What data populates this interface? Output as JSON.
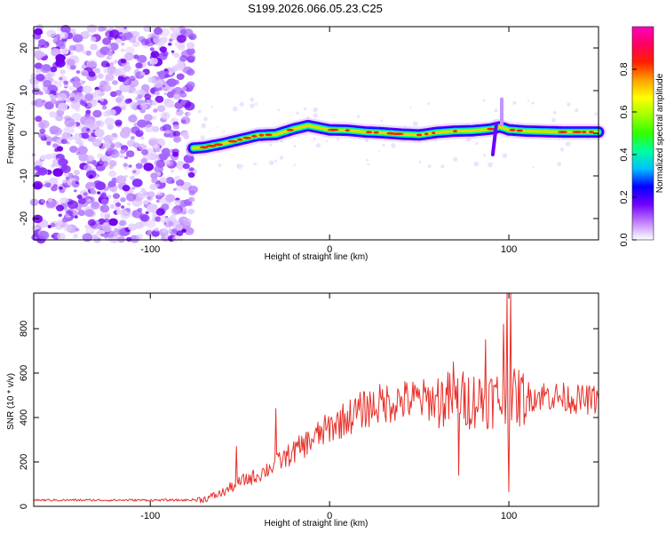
{
  "title": "S199.2026.066.05.23.C25",
  "chart_data": [
    {
      "type": "heatmap",
      "name": "spectrogram",
      "xlabel": "Height of straight line (km)",
      "ylabel": "Frequency (Hz)",
      "xlim": [
        -165,
        150
      ],
      "ylim": [
        -25,
        25
      ],
      "xticks": [
        -100,
        0,
        100
      ],
      "yticks": [
        -20,
        -10,
        0,
        10,
        20
      ],
      "noise_region_x": [
        -165,
        -76
      ],
      "ridge": {
        "x": [
          -76,
          -70,
          -60,
          -50,
          -40,
          -30,
          -20,
          -12,
          0,
          10,
          20,
          30,
          40,
          50,
          60,
          70,
          80,
          90,
          95,
          100,
          110,
          120,
          130,
          140,
          150
        ],
        "y": [
          -3.5,
          -3.3,
          -2.5,
          -1.5,
          -0.5,
          -0.3,
          1.0,
          1.8,
          0.8,
          0.7,
          0.3,
          0.1,
          -0.2,
          -0.4,
          0.2,
          0.5,
          0.6,
          1.0,
          1.5,
          0.8,
          0.5,
          0.4,
          0.3,
          0.3,
          0.3
        ]
      },
      "colorbar": {
        "label": "Normalized spectral amplitude",
        "range": [
          0,
          1
        ],
        "ticks": [
          0.0,
          0.2,
          0.4,
          0.6,
          0.8
        ],
        "tick_labels": [
          "0.0",
          "0.2",
          "0.4",
          "0.6",
          "0.8"
        ],
        "colors": [
          "#ffffff",
          "#c080ff",
          "#7000ff",
          "#0000ff",
          "#00c0ff",
          "#00ffa0",
          "#30ff00",
          "#a0ff00",
          "#ffff00",
          "#ffa000",
          "#ff2000",
          "#ff0060",
          "#ff00c0"
        ]
      }
    },
    {
      "type": "line",
      "name": "snr",
      "xlabel": "Height of straight line (km)",
      "ylabel": "SNR (10 * v/v)",
      "xlim": [
        -165,
        150
      ],
      "ylim": [
        0,
        960
      ],
      "xticks": [
        -100,
        0,
        100
      ],
      "yticks": [
        0,
        200,
        400,
        600,
        800
      ],
      "color": "#e8302a",
      "envelope": {
        "x": [
          -165,
          -80,
          -70,
          -60,
          -50,
          -40,
          -30,
          -20,
          -10,
          0,
          10,
          20,
          30,
          40,
          50,
          60,
          70,
          80,
          90,
          100,
          110,
          120,
          130,
          140,
          150
        ],
        "y": [
          28,
          28,
          32,
          60,
          110,
          140,
          190,
          245,
          300,
          355,
          400,
          440,
          465,
          475,
          480,
          478,
          480,
          480,
          485,
          480,
          495,
          500,
          490,
          480,
          480
        ]
      },
      "spikes": [
        {
          "x": -52,
          "y": 270
        },
        {
          "x": -30,
          "y": 440
        },
        {
          "x": 69,
          "y": 650
        },
        {
          "x": 72,
          "y": 140
        },
        {
          "x": 87,
          "y": 750
        },
        {
          "x": 97,
          "y": 820
        },
        {
          "x": 99,
          "y": 960
        },
        {
          "x": 100,
          "y": 65
        },
        {
          "x": 101,
          "y": 960
        }
      ]
    }
  ]
}
